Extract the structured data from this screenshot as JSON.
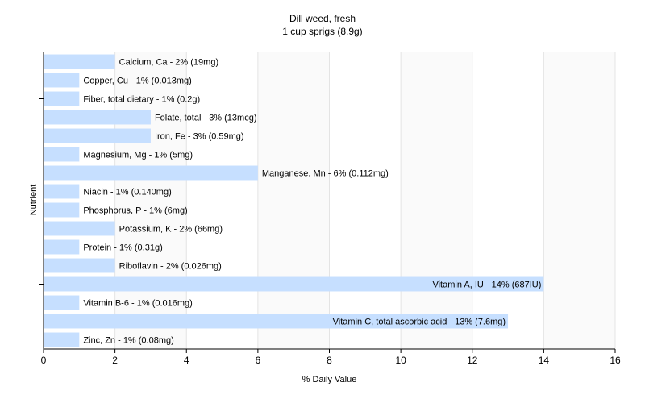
{
  "chart_data": {
    "type": "bar",
    "orientation": "horizontal",
    "title": "Dill weed, fresh",
    "subtitle": "1 cup sprigs (8.9g)",
    "xlabel": "% Daily Value",
    "ylabel": "Nutrient",
    "xlim": [
      0,
      16
    ],
    "xticks": [
      0,
      2,
      4,
      6,
      8,
      10,
      12,
      14,
      16
    ],
    "grid": true,
    "bar_color": "#c6dfff",
    "categories": [
      "Calcium, Ca",
      "Copper, Cu",
      "Fiber, total dietary",
      "Folate, total",
      "Iron, Fe",
      "Magnesium, Mg",
      "Manganese, Mn",
      "Niacin",
      "Phosphorus, P",
      "Potassium, K",
      "Protein",
      "Riboflavin",
      "Vitamin A, IU",
      "Vitamin B-6",
      "Vitamin C, total ascorbic acid",
      "Zinc, Zn"
    ],
    "values": [
      2,
      1,
      1,
      3,
      3,
      1,
      6,
      1,
      1,
      2,
      1,
      2,
      14,
      1,
      13,
      1
    ],
    "labels": [
      "Calcium, Ca - 2% (19mg)",
      "Copper, Cu - 1% (0.013mg)",
      "Fiber, total dietary - 1% (0.2g)",
      "Folate, total - 3% (13mcg)",
      "Iron, Fe - 3% (0.59mg)",
      "Magnesium, Mg - 1% (5mg)",
      "Manganese, Mn - 6% (0.112mg)",
      "Niacin - 1% (0.140mg)",
      "Phosphorus, P - 1% (6mg)",
      "Potassium, K - 2% (66mg)",
      "Protein - 1% (0.31g)",
      "Riboflavin - 2% (0.026mg)",
      "Vitamin A, IU - 14% (687IU)",
      "Vitamin B-6 - 1% (0.016mg)",
      "Vitamin C, total ascorbic acid - 13% (7.6mg)",
      "Zinc, Zn - 1% (0.08mg)"
    ]
  }
}
